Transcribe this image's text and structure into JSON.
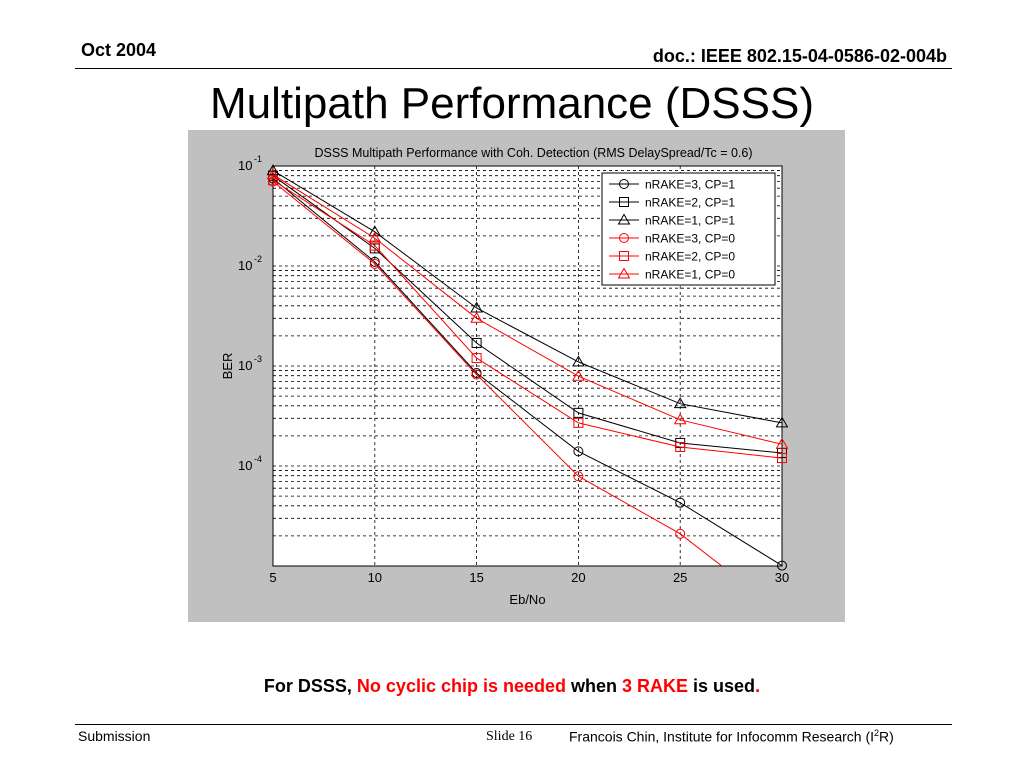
{
  "header": {
    "date": "Oct 2004",
    "doc_id": "doc.: IEEE 802.15-04-0586-02-004b"
  },
  "slide_title": "Multipath Performance (DSSS)",
  "caption": {
    "part1": "For DSSS, ",
    "part2": "No cyclic chip is needed",
    "part3": " when ",
    "part4": "3 RAKE",
    "part5": " is used",
    "part6": ".",
    "highlight_color": "#ff0000"
  },
  "footer": {
    "left": "Submission",
    "slide_label": "Slide 16",
    "right_main": "Francois Chin, Institute for Infocomm Research (I",
    "right_sup": "2",
    "right_end": "R)"
  },
  "chart_data": {
    "type": "line",
    "title": "DSSS Multipath Performance with Coh. Detection (RMS DelaySpread/Tc = 0.6)",
    "xlabel": "Eb/No",
    "ylabel": "BER",
    "xlim": [
      5,
      30
    ],
    "ylim": [
      1e-05,
      0.1
    ],
    "yscale": "log",
    "xticks": [
      "5",
      "10",
      "15",
      "20",
      "25",
      "30"
    ],
    "yticks": [
      {
        "base": "10",
        "exp": "-1",
        "value": 0.1
      },
      {
        "base": "10",
        "exp": "-2",
        "value": 0.01
      },
      {
        "base": "10",
        "exp": "-3",
        "value": 0.001
      },
      {
        "base": "10",
        "exp": "-4",
        "value": 0.0001
      }
    ],
    "grid": true,
    "legend_position": "top-right",
    "series": [
      {
        "name": "nRAKE=3, CP=1",
        "color": "#000000",
        "marker": "circle",
        "x": [
          5,
          10,
          15,
          20,
          25,
          30
        ],
        "y": [
          0.075,
          0.011,
          0.00085,
          0.00014,
          4.3e-05,
          1.01e-05
        ]
      },
      {
        "name": "nRAKE=2, CP=1",
        "color": "#000000",
        "marker": "square",
        "x": [
          5,
          10,
          15,
          20,
          25,
          30
        ],
        "y": [
          0.08,
          0.015,
          0.0017,
          0.00034,
          0.00017,
          0.000135
        ]
      },
      {
        "name": "nRAKE=1, CP=1",
        "color": "#000000",
        "marker": "triangle",
        "x": [
          5,
          10,
          15,
          20,
          25,
          30
        ],
        "y": [
          0.09,
          0.022,
          0.0038,
          0.0011,
          0.00042,
          0.00027
        ]
      },
      {
        "name": "nRAKE=3, CP=0",
        "color": "#ff0000",
        "marker": "circle",
        "x": [
          5,
          10,
          15,
          20,
          25,
          27.8
        ],
        "y": [
          0.07,
          0.0105,
          0.00082,
          7.9e-05,
          2.1e-05,
          7.6e-06
        ]
      },
      {
        "name": "nRAKE=2, CP=0",
        "color": "#ff0000",
        "marker": "square",
        "x": [
          5,
          10,
          15,
          20,
          25,
          30
        ],
        "y": [
          0.072,
          0.016,
          0.0012,
          0.00027,
          0.000155,
          0.00012
        ]
      },
      {
        "name": "nRAKE=1, CP=0",
        "color": "#ff0000",
        "marker": "triangle",
        "x": [
          5,
          10,
          15,
          20,
          25,
          30
        ],
        "y": [
          0.082,
          0.019,
          0.003,
          0.00079,
          0.00029,
          0.000165
        ]
      }
    ]
  }
}
